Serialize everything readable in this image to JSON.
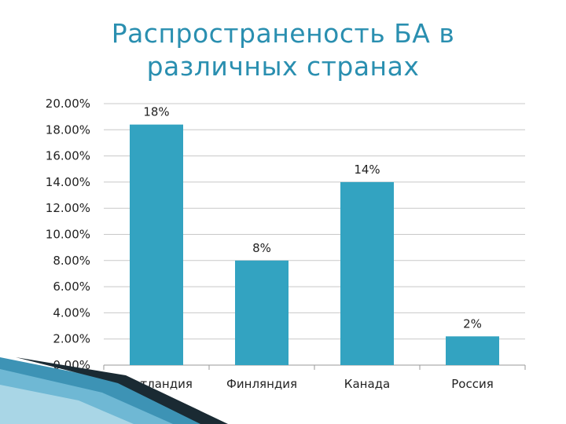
{
  "chart_data": {
    "type": "bar",
    "title_lines": [
      "Распространеность БА в",
      "различных странах"
    ],
    "categories": [
      "Шотландия",
      "Финляндия",
      "Канада",
      "Россия"
    ],
    "values": [
      18.4,
      8.0,
      14.0,
      2.2
    ],
    "data_labels": [
      "18%",
      "8%",
      "14%",
      "2%"
    ],
    "ylim": [
      0,
      20
    ],
    "y_ticks": [
      {
        "value": 0,
        "label": "0.00%"
      },
      {
        "value": 2,
        "label": "2.00%"
      },
      {
        "value": 4,
        "label": "4.00%"
      },
      {
        "value": 6,
        "label": "6.00%"
      },
      {
        "value": 8,
        "label": "8.00%"
      },
      {
        "value": 10,
        "label": "10.00%"
      },
      {
        "value": 12,
        "label": "12.00%"
      },
      {
        "value": 14,
        "label": "14.00%"
      },
      {
        "value": 16,
        "label": "16.00%"
      },
      {
        "value": 18,
        "label": "18.00%"
      },
      {
        "value": 20,
        "label": "20.00%"
      }
    ],
    "grid": true,
    "legend": "none"
  },
  "colors": {
    "bar": "#33a3c1",
    "title": "#2a8fb0",
    "grid": "#c8c8c8",
    "text": "#222222",
    "accent_dark": "#1a2a33"
  }
}
